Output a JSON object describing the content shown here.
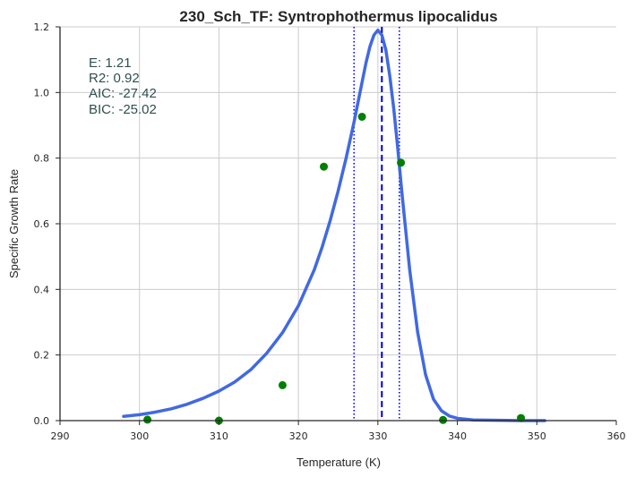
{
  "chart_data": {
    "type": "scatter",
    "title": "230_Sch_TF: Syntrophothermus lipocalidus",
    "xlabel": "Temperature (K)",
    "ylabel": "Specific Growth Rate",
    "xlim": [
      290,
      360
    ],
    "ylim": [
      0,
      1.2
    ],
    "xticks": [
      290,
      300,
      310,
      320,
      330,
      340,
      350,
      360
    ],
    "yticks": [
      0.0,
      0.2,
      0.4,
      0.6,
      0.8,
      1.0,
      1.2
    ],
    "xtick_labels": [
      "290",
      "300",
      "310",
      "320",
      "330",
      "340",
      "350",
      "360"
    ],
    "ytick_labels": [
      "0.0",
      "0.2",
      "0.4",
      "0.6",
      "0.8",
      "1.0",
      "1.2"
    ],
    "grid": true,
    "annotations": [
      "E:  1.21",
      "R2:  0.92",
      "AIC: -27.42",
      "BIC: -25.02"
    ],
    "observed": {
      "color": "#008000",
      "x": [
        301.0,
        310.0,
        318.0,
        323.2,
        328.0,
        332.9,
        338.2,
        348.0
      ],
      "y": [
        0.003,
        0.0,
        0.108,
        0.774,
        0.926,
        0.786,
        0.002,
        0.008
      ]
    },
    "fitted_curve": {
      "color": "#4169e1",
      "x": [
        298.0,
        300.0,
        302.0,
        304.0,
        306.0,
        308.0,
        310.0,
        312.0,
        314.0,
        316.0,
        318.0,
        320.0,
        322.0,
        323.0,
        324.0,
        325.0,
        326.0,
        327.0,
        328.0,
        328.5,
        329.0,
        329.5,
        330.0,
        330.5,
        331.0,
        331.5,
        332.0,
        332.5,
        333.0,
        333.5,
        334.0,
        335.0,
        336.0,
        337.0,
        338.0,
        339.0,
        340.0,
        342.0,
        345.0,
        348.0,
        351.0
      ],
      "y": [
        0.013,
        0.018,
        0.026,
        0.036,
        0.05,
        0.068,
        0.09,
        0.118,
        0.155,
        0.205,
        0.268,
        0.35,
        0.46,
        0.53,
        0.61,
        0.7,
        0.8,
        0.91,
        1.03,
        1.09,
        1.14,
        1.175,
        1.19,
        1.175,
        1.13,
        1.05,
        0.95,
        0.83,
        0.7,
        0.58,
        0.46,
        0.27,
        0.14,
        0.065,
        0.03,
        0.014,
        0.007,
        0.002,
        0.001,
        0.0,
        0.0
      ]
    },
    "vlines": [
      {
        "x": 330.5,
        "style": "dashed",
        "color": "#0000cd"
      },
      {
        "x": 327.0,
        "style": "dotted",
        "color": "#0000ff"
      },
      {
        "x": 332.7,
        "style": "dotted",
        "color": "#0000ff"
      }
    ]
  }
}
